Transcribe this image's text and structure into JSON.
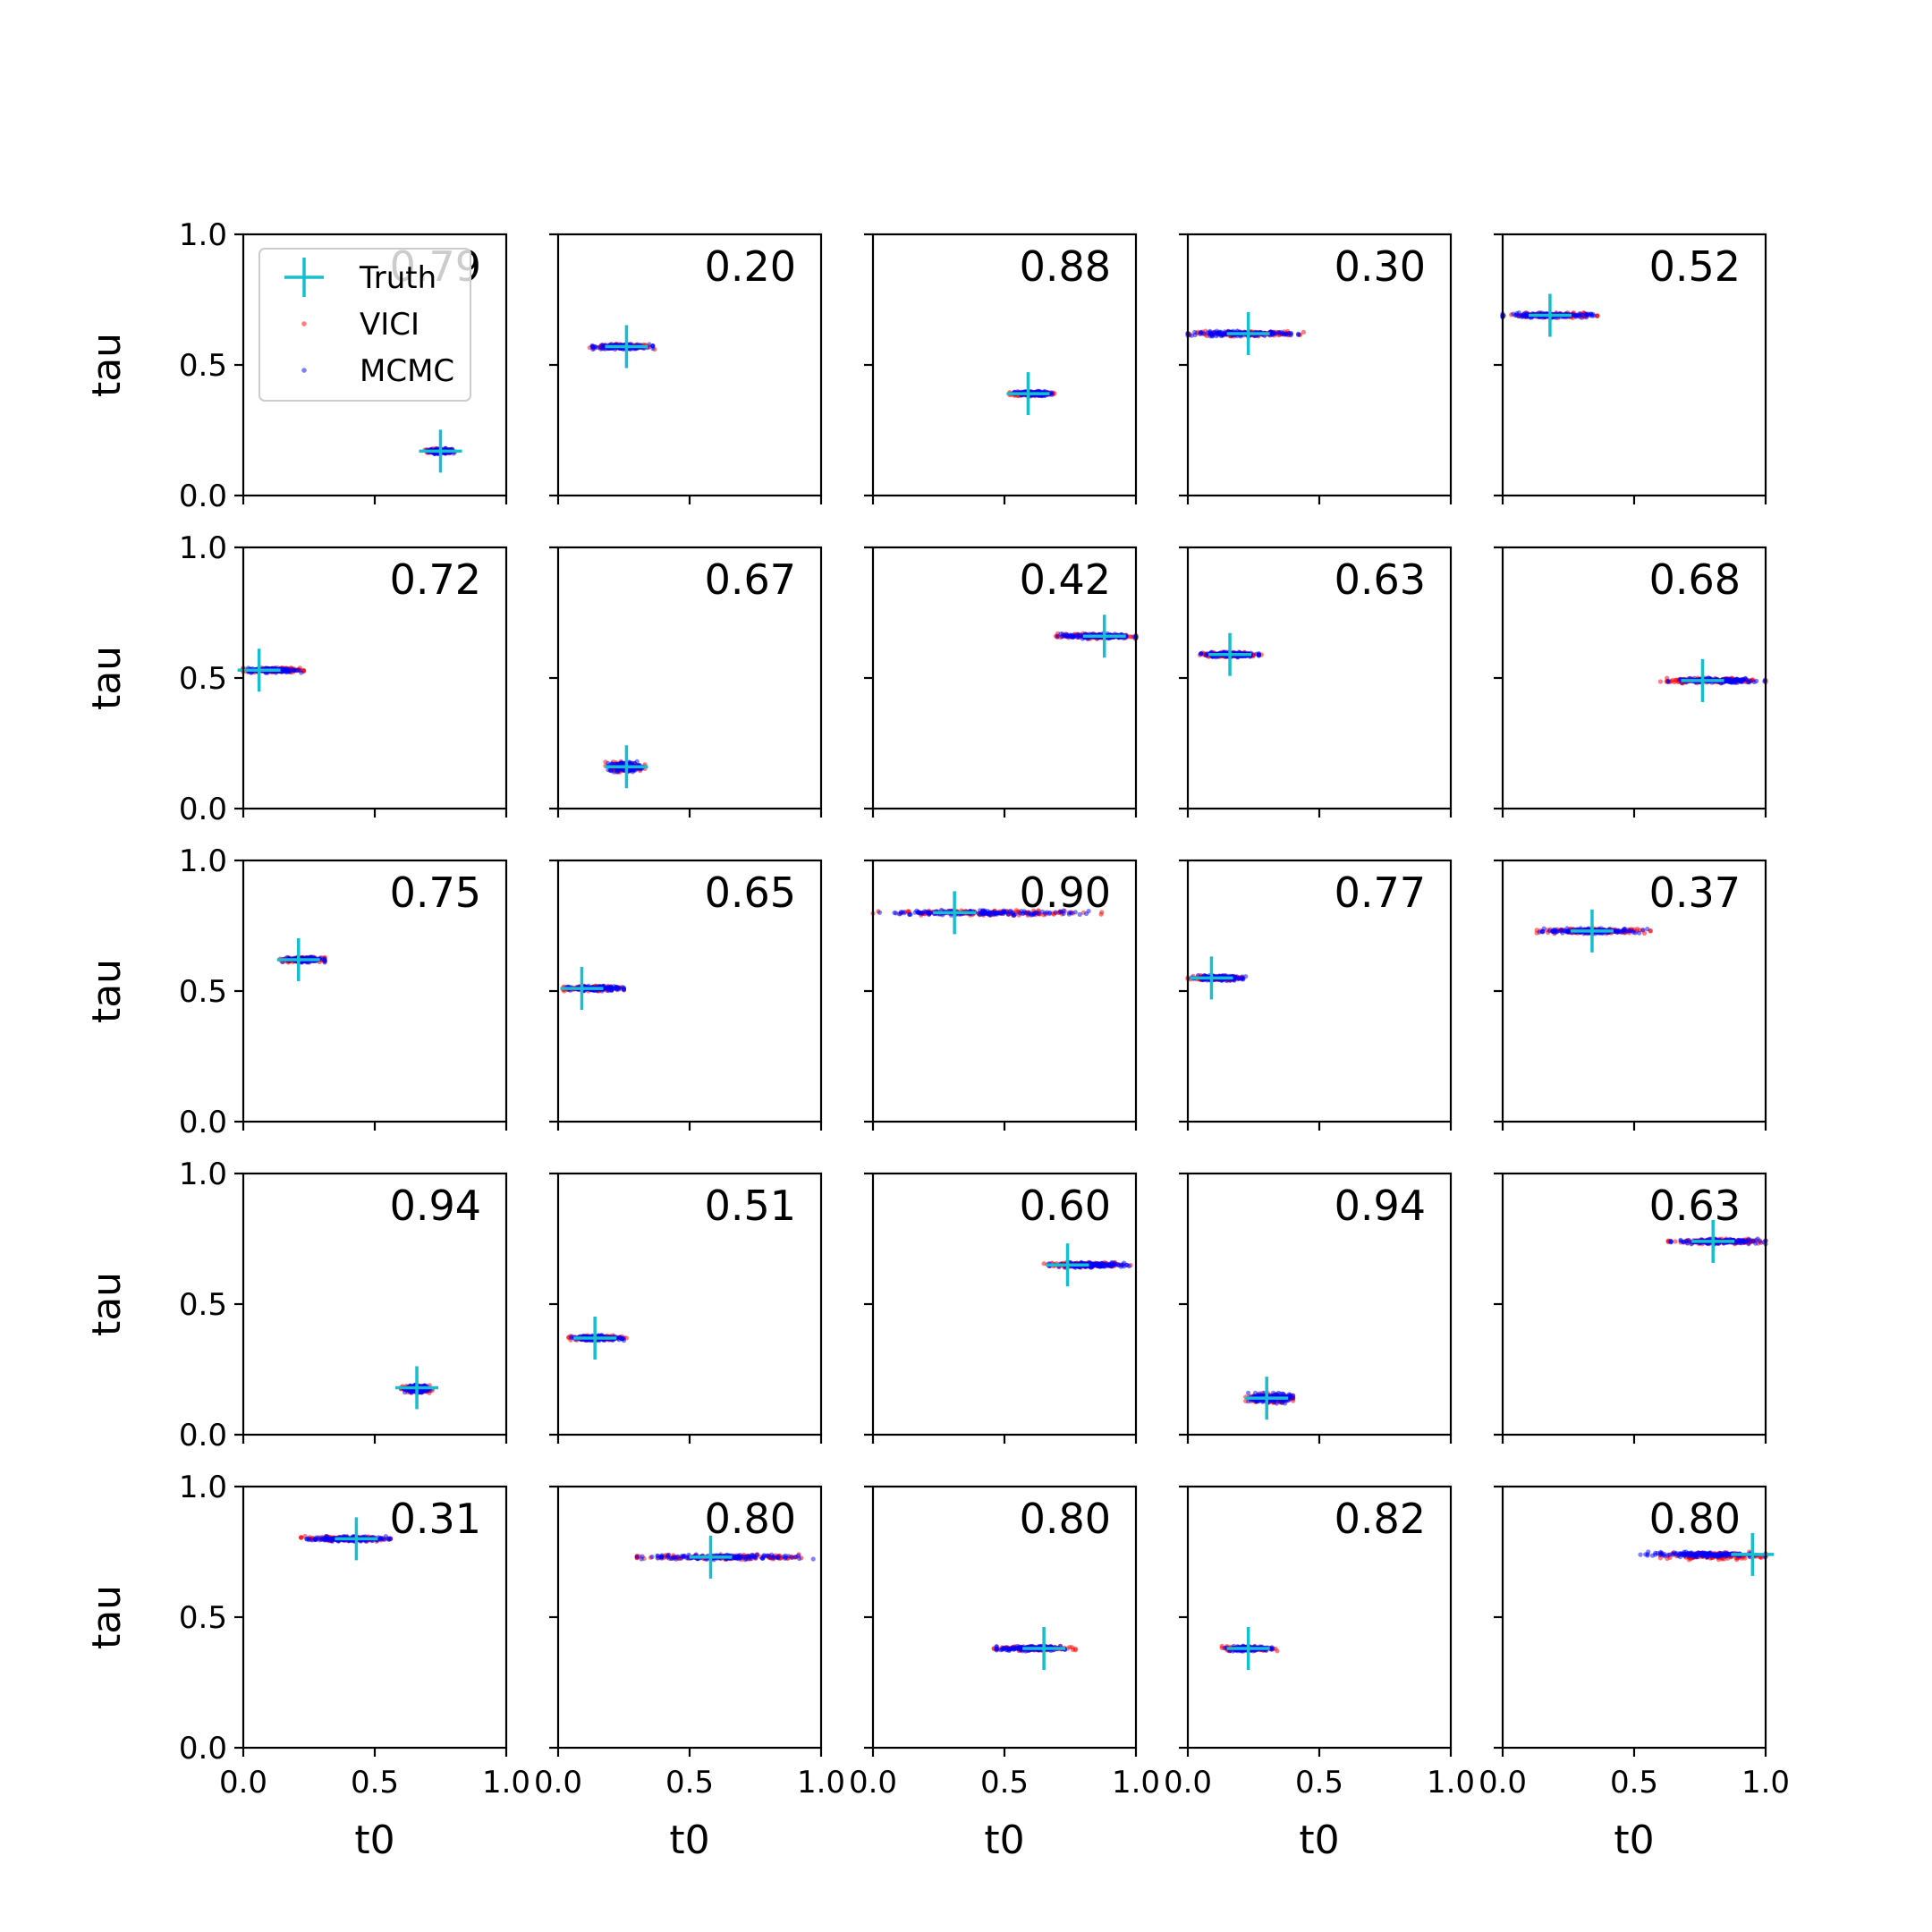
{
  "chart_data": {
    "type": "scatter",
    "layout": "5x5 grid of subplots",
    "xlabel": "t0",
    "ylabel": "tau",
    "xlim": [
      0.0,
      1.0
    ],
    "ylim": [
      0.0,
      1.0
    ],
    "xticks": [
      "0.0",
      "0.5",
      "1.0"
    ],
    "yticks": [
      "0.0",
      "0.5",
      "1.0"
    ],
    "legend": {
      "placement": "upper-left of first subplot",
      "entries": [
        {
          "label": "Truth",
          "marker": "plus",
          "color": "#17becf"
        },
        {
          "label": "VICI",
          "marker": "dot",
          "color": "#ff0000"
        },
        {
          "label": "MCMC",
          "marker": "dot",
          "color": "#0000ff"
        }
      ]
    },
    "colors": {
      "truth": "#17becf",
      "vici": "#ff0000",
      "mcmc": "#0000ff"
    },
    "panels": [
      {
        "score": "0.79",
        "truth": [
          0.75,
          0.17
        ],
        "vici": [
          0.69,
          0.81,
          0.16,
          0.18
        ],
        "mcmc": [
          0.7,
          0.8,
          0.16,
          0.18
        ]
      },
      {
        "score": "0.20",
        "truth": [
          0.26,
          0.57
        ],
        "vici": [
          0.12,
          0.37,
          0.56,
          0.58
        ],
        "mcmc": [
          0.13,
          0.36,
          0.56,
          0.58
        ]
      },
      {
        "score": "0.88",
        "truth": [
          0.59,
          0.39
        ],
        "vici": [
          0.52,
          0.69,
          0.38,
          0.4
        ],
        "mcmc": [
          0.53,
          0.68,
          0.38,
          0.4
        ]
      },
      {
        "score": "0.30",
        "truth": [
          0.23,
          0.62
        ],
        "vici": [
          0.0,
          0.44,
          0.61,
          0.63
        ],
        "mcmc": [
          0.0,
          0.42,
          0.61,
          0.63
        ]
      },
      {
        "score": "0.52",
        "truth": [
          0.18,
          0.69
        ],
        "vici": [
          0.0,
          0.36,
          0.68,
          0.7
        ],
        "mcmc": [
          0.0,
          0.35,
          0.68,
          0.7
        ]
      },
      {
        "score": "0.72",
        "truth": [
          0.06,
          0.53
        ],
        "vici": [
          0.0,
          0.23,
          0.52,
          0.54
        ],
        "mcmc": [
          0.0,
          0.22,
          0.52,
          0.54
        ]
      },
      {
        "score": "0.67",
        "truth": [
          0.26,
          0.16
        ],
        "vici": [
          0.18,
          0.33,
          0.14,
          0.18
        ],
        "mcmc": [
          0.19,
          0.32,
          0.14,
          0.18
        ]
      },
      {
        "score": "0.42",
        "truth": [
          0.88,
          0.66
        ],
        "vici": [
          0.68,
          1.0,
          0.65,
          0.67
        ],
        "mcmc": [
          0.7,
          1.0,
          0.65,
          0.67
        ]
      },
      {
        "score": "0.63",
        "truth": [
          0.16,
          0.59
        ],
        "vici": [
          0.04,
          0.28,
          0.58,
          0.6
        ],
        "mcmc": [
          0.05,
          0.27,
          0.58,
          0.6
        ]
      },
      {
        "score": "0.68",
        "truth": [
          0.76,
          0.49
        ],
        "vici": [
          0.6,
          1.0,
          0.48,
          0.5
        ],
        "mcmc": [
          0.63,
          1.0,
          0.48,
          0.5
        ]
      },
      {
        "score": "0.75",
        "truth": [
          0.21,
          0.62
        ],
        "vici": [
          0.14,
          0.31,
          0.61,
          0.63
        ],
        "mcmc": [
          0.15,
          0.31,
          0.61,
          0.63
        ]
      },
      {
        "score": "0.65",
        "truth": [
          0.09,
          0.51
        ],
        "vici": [
          0.02,
          0.25,
          0.5,
          0.52
        ],
        "mcmc": [
          0.03,
          0.25,
          0.5,
          0.52
        ]
      },
      {
        "score": "0.90",
        "truth": [
          0.31,
          0.8
        ],
        "vici": [
          0.0,
          0.87,
          0.79,
          0.81
        ],
        "mcmc": [
          0.0,
          0.82,
          0.79,
          0.81
        ]
      },
      {
        "score": "0.77",
        "truth": [
          0.09,
          0.55
        ],
        "vici": [
          0.0,
          0.21,
          0.54,
          0.56
        ],
        "mcmc": [
          0.0,
          0.22,
          0.54,
          0.56
        ]
      },
      {
        "score": "0.37",
        "truth": [
          0.34,
          0.73
        ],
        "vici": [
          0.13,
          0.58,
          0.72,
          0.74
        ],
        "mcmc": [
          0.14,
          0.55,
          0.72,
          0.74
        ]
      },
      {
        "score": "0.94",
        "truth": [
          0.66,
          0.18
        ],
        "vici": [
          0.6,
          0.72,
          0.16,
          0.19
        ],
        "mcmc": [
          0.61,
          0.71,
          0.16,
          0.19
        ]
      },
      {
        "score": "0.51",
        "truth": [
          0.14,
          0.37
        ],
        "vici": [
          0.04,
          0.26,
          0.36,
          0.38
        ],
        "mcmc": [
          0.05,
          0.25,
          0.36,
          0.38
        ]
      },
      {
        "score": "0.60",
        "truth": [
          0.74,
          0.65
        ],
        "vici": [
          0.65,
          0.98,
          0.64,
          0.66
        ],
        "mcmc": [
          0.67,
          0.98,
          0.64,
          0.66
        ]
      },
      {
        "score": "0.94",
        "truth": [
          0.3,
          0.14
        ],
        "vici": [
          0.22,
          0.4,
          0.12,
          0.16
        ],
        "mcmc": [
          0.23,
          0.4,
          0.12,
          0.16
        ]
      },
      {
        "score": "0.63",
        "truth": [
          0.8,
          0.74
        ],
        "vici": [
          0.63,
          1.0,
          0.73,
          0.75
        ],
        "mcmc": [
          0.64,
          1.0,
          0.73,
          0.75
        ]
      },
      {
        "score": "0.31",
        "truth": [
          0.43,
          0.8
        ],
        "vici": [
          0.22,
          0.56,
          0.79,
          0.81
        ],
        "mcmc": [
          0.24,
          0.56,
          0.79,
          0.81
        ]
      },
      {
        "score": "0.80",
        "truth": [
          0.58,
          0.73
        ],
        "vici": [
          0.3,
          0.97,
          0.72,
          0.74
        ],
        "mcmc": [
          0.3,
          0.97,
          0.72,
          0.74
        ]
      },
      {
        "score": "0.80",
        "truth": [
          0.65,
          0.38
        ],
        "vici": [
          0.46,
          0.77,
          0.37,
          0.39
        ],
        "mcmc": [
          0.47,
          0.73,
          0.37,
          0.39
        ]
      },
      {
        "score": "0.82",
        "truth": [
          0.23,
          0.38
        ],
        "vici": [
          0.13,
          0.34,
          0.37,
          0.39
        ],
        "mcmc": [
          0.14,
          0.32,
          0.37,
          0.39
        ]
      },
      {
        "score": "0.80",
        "truth": [
          0.95,
          0.74
        ],
        "vici": [
          0.6,
          1.0,
          0.72,
          0.75
        ],
        "mcmc": [
          0.52,
          1.0,
          0.73,
          0.75
        ]
      }
    ]
  }
}
